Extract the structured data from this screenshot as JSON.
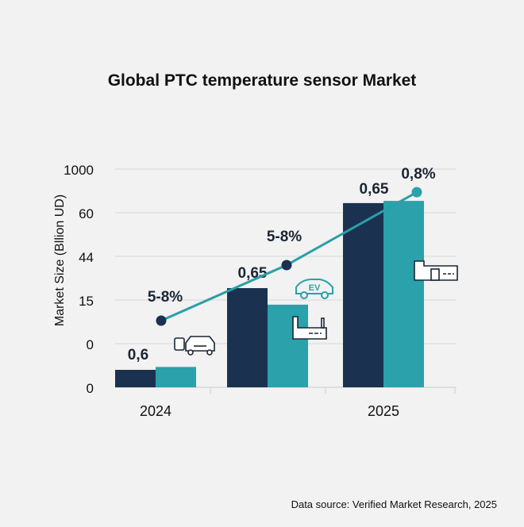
{
  "chart_data": {
    "type": "bar",
    "title": "Global PTC temperature sensor Market",
    "ylabel": "Market Size (Bllion UD)",
    "xlabel": "",
    "y_ticks": [
      "0",
      "0",
      "15",
      "44",
      "60",
      "1000"
    ],
    "categories": [
      "2024",
      "",
      "2025"
    ],
    "series": [
      {
        "values": [
          0.6,
          22.9,
          267
        ],
        "color": "#1a3250"
      },
      {
        "values": [
          0.7,
          13.4,
          314
        ],
        "color": "#2aa1ab"
      }
    ],
    "bar_labels": [
      "0,6",
      "0,65",
      "0,65"
    ],
    "line": {
      "values": [
        7.9,
        38.2,
        502
      ],
      "labels": [
        "5-8%",
        "5-8%",
        "0,8%"
      ],
      "color": "#2a9fa8",
      "marker_colors": [
        "#1a3250",
        "#1a3250",
        "#2aa1ab"
      ]
    },
    "icons": [
      "battery-car-icon",
      "ev-car-icon",
      "factory-icon",
      "factory-icon"
    ],
    "grid": true,
    "source": "Data source: Verified Market Research, 2025"
  }
}
